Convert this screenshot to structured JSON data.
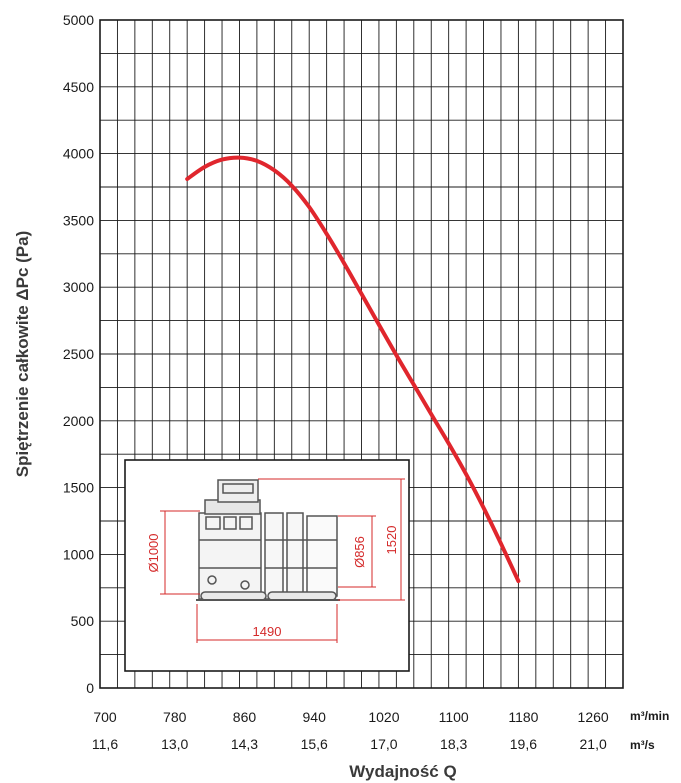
{
  "chart_data": {
    "type": "line",
    "title": "",
    "ylabel": "Spiętrzenie całkowite ΔPc (Pa)",
    "xlabel": "Wydajność Q",
    "ylim": [
      0,
      5000
    ],
    "xlim": [
      700,
      1300
    ],
    "y_ticks": [
      0,
      500,
      1000,
      1500,
      2000,
      2500,
      3000,
      3500,
      4000,
      4500,
      5000
    ],
    "x_ticks_primary": [
      "700",
      "780",
      "860",
      "940",
      "1020",
      "1100",
      "1180",
      "1260"
    ],
    "x_ticks_primary_values": [
      700,
      780,
      860,
      940,
      1020,
      1100,
      1180,
      1260
    ],
    "x_ticks_secondary": [
      "11,6",
      "13,0",
      "14,3",
      "15,6",
      "17,0",
      "18,3",
      "19,6",
      "21,0"
    ],
    "x_unit_primary": "m³/min",
    "x_unit_secondary": "m³/s",
    "grid": true,
    "line_color": "#e0262d",
    "series": [
      {
        "x": [
          800,
          820,
          840,
          860,
          880,
          900,
          920,
          940,
          960,
          980,
          1000,
          1020,
          1040,
          1060,
          1080,
          1100,
          1120,
          1140,
          1160,
          1180
        ],
        "y": [
          3810,
          3900,
          3955,
          3970,
          3945,
          3875,
          3760,
          3600,
          3400,
          3180,
          2950,
          2720,
          2490,
          2270,
          2050,
          1830,
          1600,
          1350,
          1080,
          800
        ]
      }
    ]
  },
  "inset": {
    "dim_height_left": "Ø1000",
    "dim_height_mid": "Ø856",
    "dim_height_right": "1520",
    "dim_width": "1490",
    "dim_color": "#d42a2a"
  }
}
